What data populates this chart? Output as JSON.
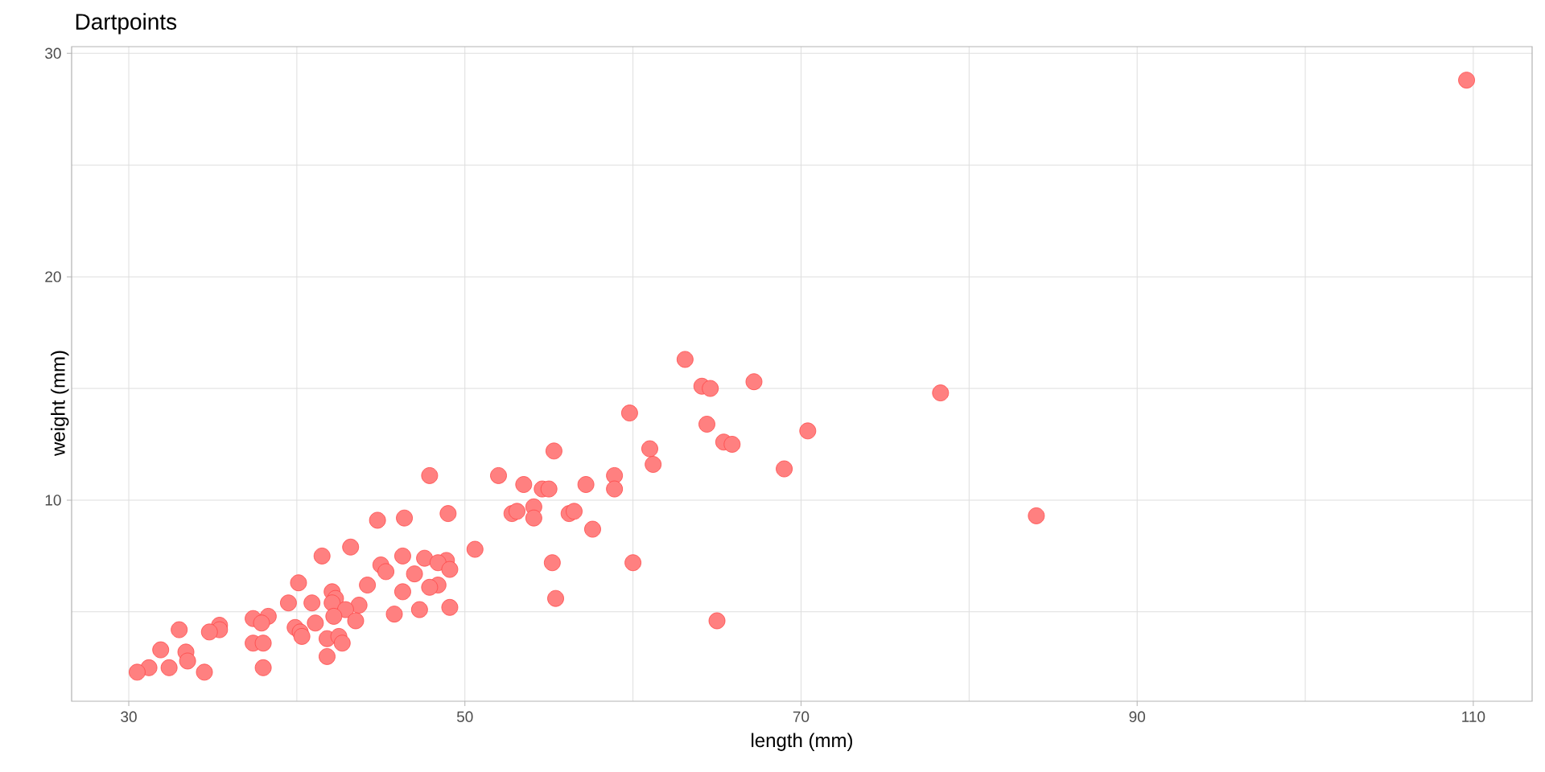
{
  "chart_data": {
    "type": "scatter",
    "title": "Dartpoints",
    "xlabel": "length (mm)",
    "ylabel": "weight (mm)",
    "x": [
      109.6,
      78.3,
      84.0,
      63.1,
      64.1,
      64.6,
      67.2,
      59.8,
      64.4,
      70.4,
      65.4,
      65.9,
      61.0,
      55.3,
      61.2,
      69.0,
      47.9,
      52.0,
      58.9,
      53.5,
      57.2,
      54.6,
      55.0,
      58.9,
      54.1,
      49.0,
      52.8,
      53.1,
      56.2,
      56.5,
      44.8,
      46.4,
      54.1,
      57.6,
      43.2,
      50.6,
      41.5,
      46.3,
      47.6,
      48.9,
      45.0,
      48.4,
      55.2,
      60.0,
      49.1,
      45.3,
      47.0,
      40.1,
      44.2,
      48.4,
      47.9,
      42.1,
      46.3,
      42.3,
      55.4,
      39.5,
      40.9,
      42.1,
      43.7,
      49.1,
      42.9,
      47.3,
      45.8,
      37.4,
      42.2,
      38.3,
      43.5,
      41.1,
      37.9,
      65.0,
      39.9,
      35.4,
      35.4,
      34.8,
      33.0,
      40.2,
      40.3,
      41.8,
      42.5,
      37.4,
      38.0,
      42.7,
      31.9,
      33.4,
      33.5,
      41.8,
      31.2,
      32.4,
      38.0,
      30.5,
      34.5
    ],
    "values": [
      28.8,
      14.8,
      9.3,
      16.3,
      15.1,
      15.0,
      15.3,
      13.9,
      13.4,
      13.1,
      12.6,
      12.5,
      12.3,
      12.2,
      11.6,
      11.4,
      11.1,
      11.1,
      11.1,
      10.7,
      10.7,
      10.5,
      10.5,
      10.5,
      9.7,
      9.4,
      9.4,
      9.5,
      9.4,
      9.5,
      9.1,
      9.2,
      9.2,
      8.7,
      7.9,
      7.8,
      7.5,
      7.5,
      7.4,
      7.3,
      7.1,
      7.2,
      7.2,
      7.2,
      6.9,
      6.8,
      6.7,
      6.3,
      6.2,
      6.2,
      6.1,
      5.9,
      5.9,
      5.6,
      5.6,
      5.4,
      5.4,
      5.4,
      5.3,
      5.2,
      5.1,
      5.1,
      4.9,
      4.7,
      4.8,
      4.8,
      4.6,
      4.5,
      4.5,
      4.6,
      4.3,
      4.4,
      4.2,
      4.1,
      4.2,
      4.1,
      3.9,
      3.8,
      3.9,
      3.6,
      3.6,
      3.6,
      3.3,
      3.2,
      2.8,
      3.0,
      2.5,
      2.5,
      2.5,
      2.3,
      2.3
    ],
    "color": "#ff8080",
    "marker": "circle",
    "grid": true,
    "xlim": [
      26.6,
      113.5
    ],
    "ylim": [
      1.0,
      30.3
    ],
    "xticks": [
      30,
      {
        "value": 40,
        "label": null
      },
      50,
      {
        "value": 60,
        "label": null
      },
      70,
      {
        "value": 80,
        "label": null
      },
      90,
      {
        "value": 100,
        "label": null
      },
      110
    ],
    "yticks": [
      {
        "value": 5,
        "label": null
      },
      10,
      {
        "value": 15,
        "label": null
      },
      20,
      {
        "value": 25,
        "label": null
      },
      30
    ]
  }
}
